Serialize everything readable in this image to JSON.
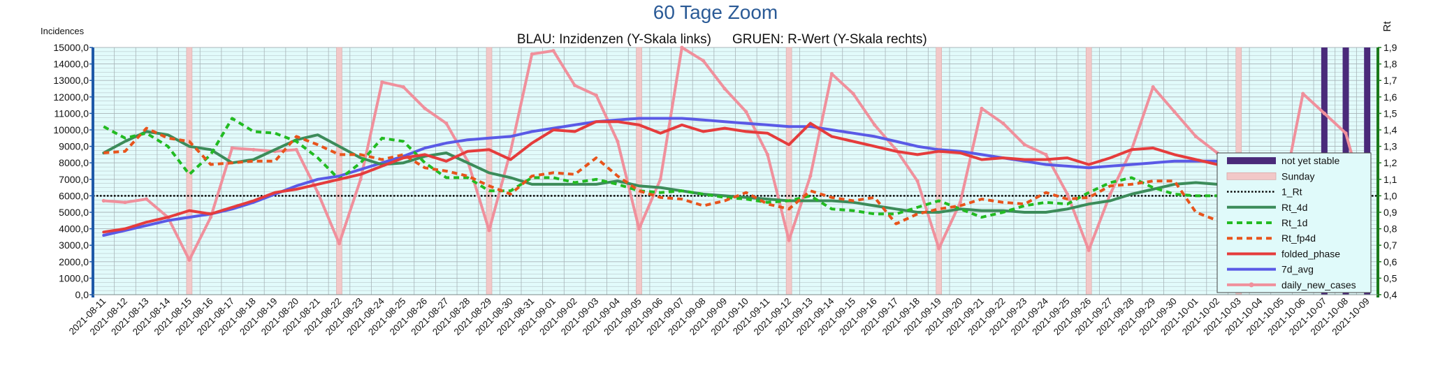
{
  "chart_data": {
    "type": "line",
    "title": "60 Tage Zoom",
    "subtitle_left": "BLAU: Inzidenzen (Y-Skala links)",
    "subtitle_right": "GRUEN: R-Wert (Y-Skala rechts)",
    "ylabel_left": "Incidences",
    "ylabel_right": "Rt",
    "ylim_left": [
      0,
      15000
    ],
    "ylim_right": [
      0.4,
      1.9
    ],
    "yticks_left": [
      "0,0",
      "1000,0",
      "2000,0",
      "3000,0",
      "4000,0",
      "5000,0",
      "6000,0",
      "7000,0",
      "8000,0",
      "9000,0",
      "10000,0",
      "11000,0",
      "12000,0",
      "13000,0",
      "14000,0",
      "15000,0"
    ],
    "yticks_right": [
      "0,4",
      "0,5",
      "0,6",
      "0,7",
      "0,8",
      "0,9",
      "1,0",
      "1,1",
      "1,2",
      "1,3",
      "1,4",
      "1,5",
      "1,6",
      "1,7",
      "1,8",
      "1,9"
    ],
    "categories": [
      "2021-08-11",
      "2021-08-12",
      "2021-08-13",
      "2021-08-14",
      "2021-08-15",
      "2021-08-16",
      "2021-08-17",
      "2021-08-18",
      "2021-08-19",
      "2021-08-20",
      "2021-08-21",
      "2021-08-22",
      "2021-08-23",
      "2021-08-24",
      "2021-08-25",
      "2021-08-26",
      "2021-08-27",
      "2021-08-28",
      "2021-08-29",
      "2021-08-30",
      "2021-08-31",
      "2021-09-01",
      "2021-09-02",
      "2021-09-03",
      "2021-09-04",
      "2021-09-05",
      "2021-09-06",
      "2021-09-07",
      "2021-09-08",
      "2021-09-09",
      "2021-09-10",
      "2021-09-11",
      "2021-09-12",
      "2021-09-13",
      "2021-09-14",
      "2021-09-15",
      "2021-09-16",
      "2021-09-17",
      "2021-09-18",
      "2021-09-19",
      "2021-09-20",
      "2021-09-21",
      "2021-09-22",
      "2021-09-23",
      "2021-09-24",
      "2021-09-25",
      "2021-09-26",
      "2021-09-27",
      "2021-09-28",
      "2021-09-29",
      "2021-09-30",
      "2021-10-01",
      "2021-10-02",
      "2021-10-03",
      "2021-10-04",
      "2021-10-05",
      "2021-10-06",
      "2021-10-07",
      "2021-10-08",
      "2021-10-09"
    ],
    "sundays": [
      "2021-08-15",
      "2021-08-22",
      "2021-08-29",
      "2021-09-05",
      "2021-09-12",
      "2021-09-19",
      "2021-09-26",
      "2021-10-03"
    ],
    "not_yet_stable": [
      "2021-10-07",
      "2021-10-08",
      "2021-10-09"
    ],
    "reference_line": {
      "name": "1_Rt",
      "value": 1.0
    },
    "series": [
      {
        "name": "Rt_4d",
        "axis": "right",
        "color": "#3c8c5a",
        "style": "solid",
        "values": [
          1.26,
          1.33,
          1.39,
          1.37,
          1.3,
          1.28,
          1.2,
          1.22,
          1.28,
          1.34,
          1.37,
          1.3,
          1.23,
          1.19,
          1.2,
          1.24,
          1.26,
          1.2,
          1.14,
          1.11,
          1.07,
          1.07,
          1.07,
          1.07,
          1.09,
          1.06,
          1.05,
          1.03,
          1.01,
          1.0,
          0.99,
          0.98,
          0.97,
          0.97,
          0.97,
          0.96,
          0.94,
          0.92,
          0.9,
          0.9,
          0.92,
          0.91,
          0.91,
          0.9,
          0.9,
          0.92,
          0.95,
          0.97,
          1.01,
          1.04,
          1.07,
          1.08,
          1.07,
          1.04,
          1.0,
          1.0,
          0.99,
          1.0,
          1.0,
          0.99
        ]
      },
      {
        "name": "Rt_1d",
        "axis": "right",
        "color": "#22bb22",
        "style": "dash",
        "values": [
          1.42,
          1.35,
          1.38,
          1.3,
          1.13,
          1.25,
          1.47,
          1.39,
          1.38,
          1.33,
          1.23,
          1.1,
          1.2,
          1.35,
          1.33,
          1.2,
          1.11,
          1.11,
          1.03,
          1.03,
          1.11,
          1.11,
          1.08,
          1.1,
          1.07,
          1.03,
          1.02,
          1.03,
          1.01,
          0.99,
          0.98,
          0.96,
          0.97,
          1.0,
          0.92,
          0.91,
          0.89,
          0.89,
          0.93,
          0.97,
          0.92,
          0.87,
          0.9,
          0.94,
          0.96,
          0.95,
          1.02,
          1.08,
          1.11,
          1.05,
          1.01,
          1.0,
          1.0,
          0.99,
          1.0,
          0.98,
          0.99,
          1.06,
          1.05,
          0.98
        ]
      },
      {
        "name": "Rt_fp4d",
        "axis": "right",
        "color": "#e8541c",
        "style": "dash",
        "values": [
          1.26,
          1.27,
          1.41,
          1.35,
          1.33,
          1.19,
          1.2,
          1.21,
          1.21,
          1.36,
          1.31,
          1.25,
          1.25,
          1.22,
          1.25,
          1.17,
          1.15,
          1.12,
          1.06,
          1.01,
          1.12,
          1.14,
          1.13,
          1.23,
          1.12,
          1.03,
          0.99,
          0.98,
          0.94,
          0.97,
          1.02,
          0.95,
          0.92,
          1.03,
          0.99,
          0.97,
          0.99,
          0.83,
          0.89,
          0.92,
          0.94,
          0.98,
          0.96,
          0.95,
          1.02,
          0.98,
          0.99,
          1.06,
          1.07,
          1.09,
          1.09,
          0.9,
          0.85,
          0.9,
          0.93,
          0.99,
          1.03,
          1.1,
          1.06,
          1.01
        ]
      },
      {
        "name": "folded_phase",
        "axis": "left",
        "color": "#e53c3c",
        "style": "solid",
        "values": [
          3800,
          4000,
          4400,
          4700,
          5100,
          4900,
          5300,
          5700,
          6200,
          6400,
          6700,
          7000,
          7300,
          7800,
          8300,
          8500,
          8100,
          8700,
          8800,
          8200,
          9200,
          10000,
          9900,
          10500,
          10500,
          10300,
          9800,
          10300,
          9900,
          10100,
          9900,
          9800,
          9100,
          10400,
          9600,
          9300,
          9000,
          8700,
          8500,
          8700,
          8600,
          8200,
          8300,
          8200,
          8200,
          8300,
          7900,
          8300,
          8800,
          8900,
          8500,
          8200,
          7900,
          7600,
          7700,
          7700,
          7700,
          7900,
          8300,
          7400
        ]
      },
      {
        "name": "7d_avg",
        "axis": "left",
        "color": "#5a5ae6",
        "style": "solid",
        "values": [
          3600,
          3900,
          4200,
          4500,
          4700,
          4900,
          5200,
          5600,
          6100,
          6600,
          7000,
          7200,
          7600,
          8000,
          8400,
          8900,
          9200,
          9400,
          9500,
          9600,
          9900,
          10100,
          10300,
          10500,
          10600,
          10700,
          10700,
          10700,
          10600,
          10500,
          10400,
          10300,
          10200,
          10200,
          10000,
          9800,
          9600,
          9300,
          9000,
          8800,
          8700,
          8500,
          8300,
          8100,
          7900,
          7800,
          7700,
          7800,
          7900,
          8000,
          8100,
          8100,
          8100,
          8100,
          8000,
          8000,
          8000,
          8000,
          8000,
          7800
        ]
      },
      {
        "name": "daily_new_cases",
        "axis": "left",
        "color": "#f0909c",
        "style": "marker",
        "values": [
          5700,
          5600,
          5800,
          4700,
          2100,
          4700,
          8900,
          8800,
          8700,
          8800,
          6200,
          3100,
          7000,
          12900,
          12600,
          11300,
          10400,
          8100,
          3900,
          8700,
          14600,
          14800,
          12700,
          12100,
          9300,
          4000,
          7000,
          15000,
          14200,
          12500,
          11100,
          8500,
          3300,
          7200,
          13400,
          12200,
          10300,
          8800,
          6900,
          2800,
          5600,
          11300,
          10400,
          9100,
          8500,
          6100,
          2700,
          6100,
          8800,
          12600,
          11100,
          9600,
          8600,
          6000,
          2600,
          5700,
          12200,
          11000,
          9800,
          5200
        ]
      }
    ],
    "legend": {
      "placement": "right",
      "entries": [
        "not yet stable",
        "Sunday",
        "1_Rt",
        "Rt_4d",
        "Rt_1d",
        "Rt_fp4d",
        "folded_phase",
        "7d_avg",
        "daily_new_cases"
      ]
    },
    "grid": true
  },
  "colors": {
    "plot_bg": "#e2fbfb",
    "grid": "#a8b4b8",
    "left_axis": "#1f5aa8",
    "right_axis": "#1a7a1a",
    "title": "#2a5a96",
    "sunday_band": "#f2c8c8",
    "not_stable_band": "#4a2a7a",
    "legend_bg": "#e0fafa"
  }
}
